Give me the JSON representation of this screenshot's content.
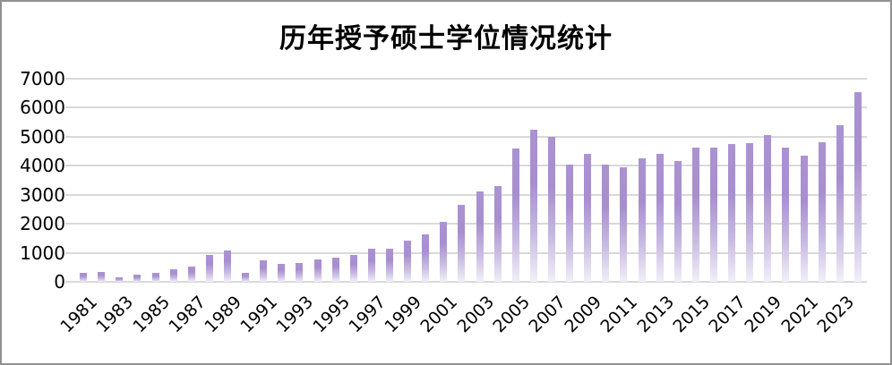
{
  "title": "历年授予硕士学位情况统计",
  "colors": {
    "bar_top": "#ab93d2",
    "bar_mid": "#a78ecf",
    "bar_light": "#c9bce3",
    "bar_fade": "#f2eff8",
    "gridline": "#d9d9d9",
    "axis_line": "#d9d9d9",
    "frame_border": "#919191",
    "text": "#000000",
    "background": "#ffffff"
  },
  "chart_data": {
    "type": "bar",
    "title": "历年授予硕士学位情况统计",
    "xlabel": "",
    "ylabel": "",
    "categories": [
      1981,
      1982,
      1983,
      1984,
      1985,
      1986,
      1987,
      1988,
      1989,
      1990,
      1991,
      1992,
      1993,
      1994,
      1995,
      1996,
      1997,
      1998,
      1999,
      2000,
      2001,
      2002,
      2003,
      2004,
      2005,
      2006,
      2007,
      2008,
      2009,
      2010,
      2011,
      2012,
      2013,
      2014,
      2015,
      2016,
      2017,
      2018,
      2019,
      2020,
      2021,
      2022,
      2023,
      2024
    ],
    "values": [
      320,
      340,
      160,
      260,
      300,
      440,
      510,
      920,
      1090,
      320,
      730,
      630,
      650,
      760,
      820,
      930,
      1150,
      1140,
      1420,
      1640,
      2070,
      2660,
      3100,
      3310,
      4600,
      5250,
      5000,
      4050,
      4400,
      4030,
      3950,
      4250,
      4400,
      4170,
      4620,
      4640,
      4750,
      4780,
      5050,
      4640,
      4360,
      4820,
      5400,
      6530
    ],
    "ylim": [
      0,
      7000
    ],
    "yticks": [
      0,
      1000,
      2000,
      3000,
      4000,
      5000,
      6000,
      7000
    ],
    "xtick_labels_shown": [
      "1981",
      "1983",
      "1985",
      "1987",
      "1989",
      "1991",
      "1993",
      "1995",
      "1997",
      "1999",
      "2001",
      "2003",
      "2005",
      "2007",
      "2009",
      "2011",
      "2013",
      "2015",
      "2017",
      "2019",
      "2021",
      "2023"
    ],
    "xtick_label_rotation_deg": 45,
    "grid": "horizontal",
    "legend": "none",
    "bar_style": "vertical gradient, purple at top fading to white at baseline"
  }
}
